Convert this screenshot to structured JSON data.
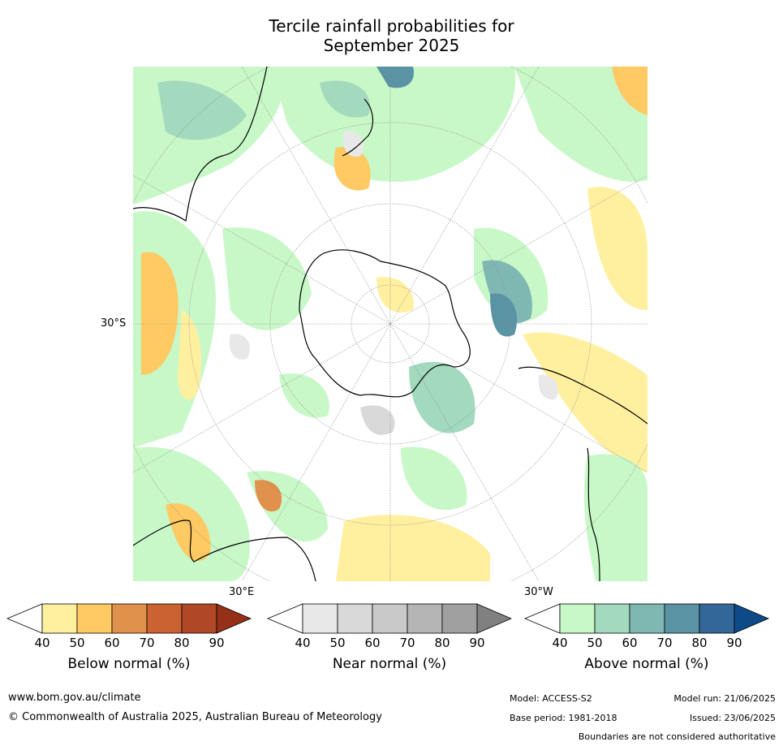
{
  "title": {
    "line1": "Tercile rainfall probabilities for",
    "line2": "September 2025"
  },
  "map_labels": {
    "lat": "30°S",
    "lon_east": "30°E",
    "lon_west": "30°W"
  },
  "colorbars": [
    {
      "title": "Below normal (%)",
      "ticks": [
        "40",
        "50",
        "60",
        "70",
        "80",
        "90"
      ],
      "colors": [
        "#ffffff",
        "#fff0a0",
        "#ffc963",
        "#e0914b",
        "#cb6232",
        "#b04726",
        "#963019"
      ]
    },
    {
      "title": "Near normal (%)",
      "ticks": [
        "40",
        "50",
        "60",
        "70",
        "80",
        "90"
      ],
      "colors": [
        "#ffffff",
        "#e8e8e8",
        "#d9d9d9",
        "#c9c9c9",
        "#b5b5b5",
        "#a0a0a0",
        "#808080"
      ]
    },
    {
      "title": "Above normal (%)",
      "ticks": [
        "40",
        "50",
        "60",
        "70",
        "80",
        "90"
      ],
      "colors": [
        "#ffffff",
        "#c8f8c8",
        "#a3d9bd",
        "#7fb8b2",
        "#5a93a4",
        "#336699",
        "#0e4a87"
      ]
    }
  ],
  "footer": {
    "url": "www.bom.gov.au/climate",
    "copyright": "© Commonwealth of Australia 2025, Australian Bureau of Meteorology",
    "model": "Model: ACCESS-S2",
    "model_run": "Model run: 21/06/2025",
    "base_period": "Base period: 1981-2018",
    "issued": "Issued: 23/06/2025",
    "disclaimer": "Boundaries are not considered authoritative"
  }
}
